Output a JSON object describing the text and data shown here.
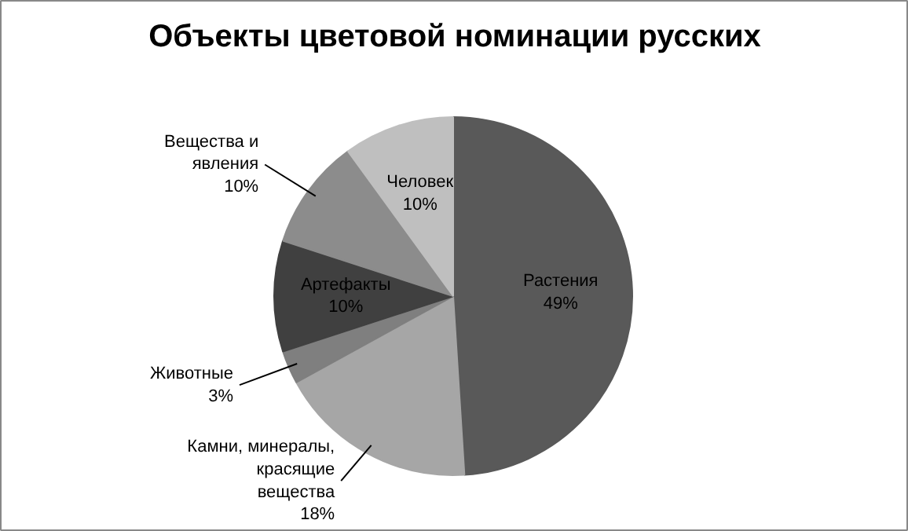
{
  "chart_data": {
    "type": "pie",
    "title": "Объекты цветовой номинации русских",
    "categories": [
      "Растения",
      "Камни, минералы, красящие вещества",
      "Животные",
      "Артефакты",
      "Вещества и явления",
      "Человек"
    ],
    "values": [
      49,
      18,
      3,
      10,
      10,
      10
    ],
    "colors": [
      "#595959",
      "#a6a6a6",
      "#7f7f7f",
      "#404040",
      "#8c8c8c",
      "#bfbfbf"
    ],
    "value_labels": [
      "49%",
      "18%",
      "3%",
      "10%",
      "10%",
      "10%"
    ]
  }
}
